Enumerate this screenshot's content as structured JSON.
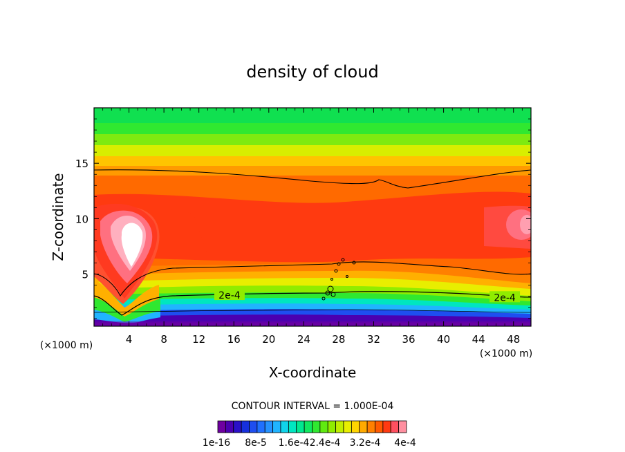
{
  "chart_data": {
    "type": "heatmap",
    "title": "density of cloud",
    "xlabel": "X-coordinate",
    "ylabel": "Z-coordinate",
    "x_unit_left": "(×1000 m)",
    "x_unit_right": "(×1000 m)",
    "xlim": [
      0,
      50
    ],
    "ylim": [
      0.3,
      20
    ],
    "x_ticks": [
      4,
      8,
      12,
      16,
      20,
      24,
      28,
      32,
      36,
      40,
      44,
      48
    ],
    "y_ticks": [
      5,
      10,
      15
    ],
    "contour_interval_label": "CONTOUR INTERVAL = 1.000E-04",
    "contour_labels": [
      {
        "text": "2e-4",
        "x": 15.5,
        "z": 3.1
      },
      {
        "text": "2e-4",
        "x": 47.0,
        "z": 2.9
      }
    ],
    "colorbar_levels": 24,
    "colorbar_colors": [
      "#6e00a0",
      "#4b00b0",
      "#2a10c8",
      "#1630dc",
      "#1e4ef0",
      "#2070ff",
      "#2592ff",
      "#20b4ff",
      "#10d4ea",
      "#00e6c0",
      "#00e890",
      "#10e860",
      "#30e830",
      "#60ea10",
      "#90ec00",
      "#c0ee00",
      "#e8ee00",
      "#ffd400",
      "#ffaa00",
      "#ff8000",
      "#ff5a00",
      "#ff3a10",
      "#ff5060",
      "#ff8fa0"
    ],
    "colorbar_labels": [
      "1e-16",
      "8e-5",
      "1.6e-4",
      "2.4e-4",
      "3.2e-4",
      "4e-4"
    ],
    "field_description_colors": {
      "low": "#6e00a0",
      "mid": "#10e860",
      "high": "#ff3a10",
      "max": "#ffffff"
    }
  }
}
